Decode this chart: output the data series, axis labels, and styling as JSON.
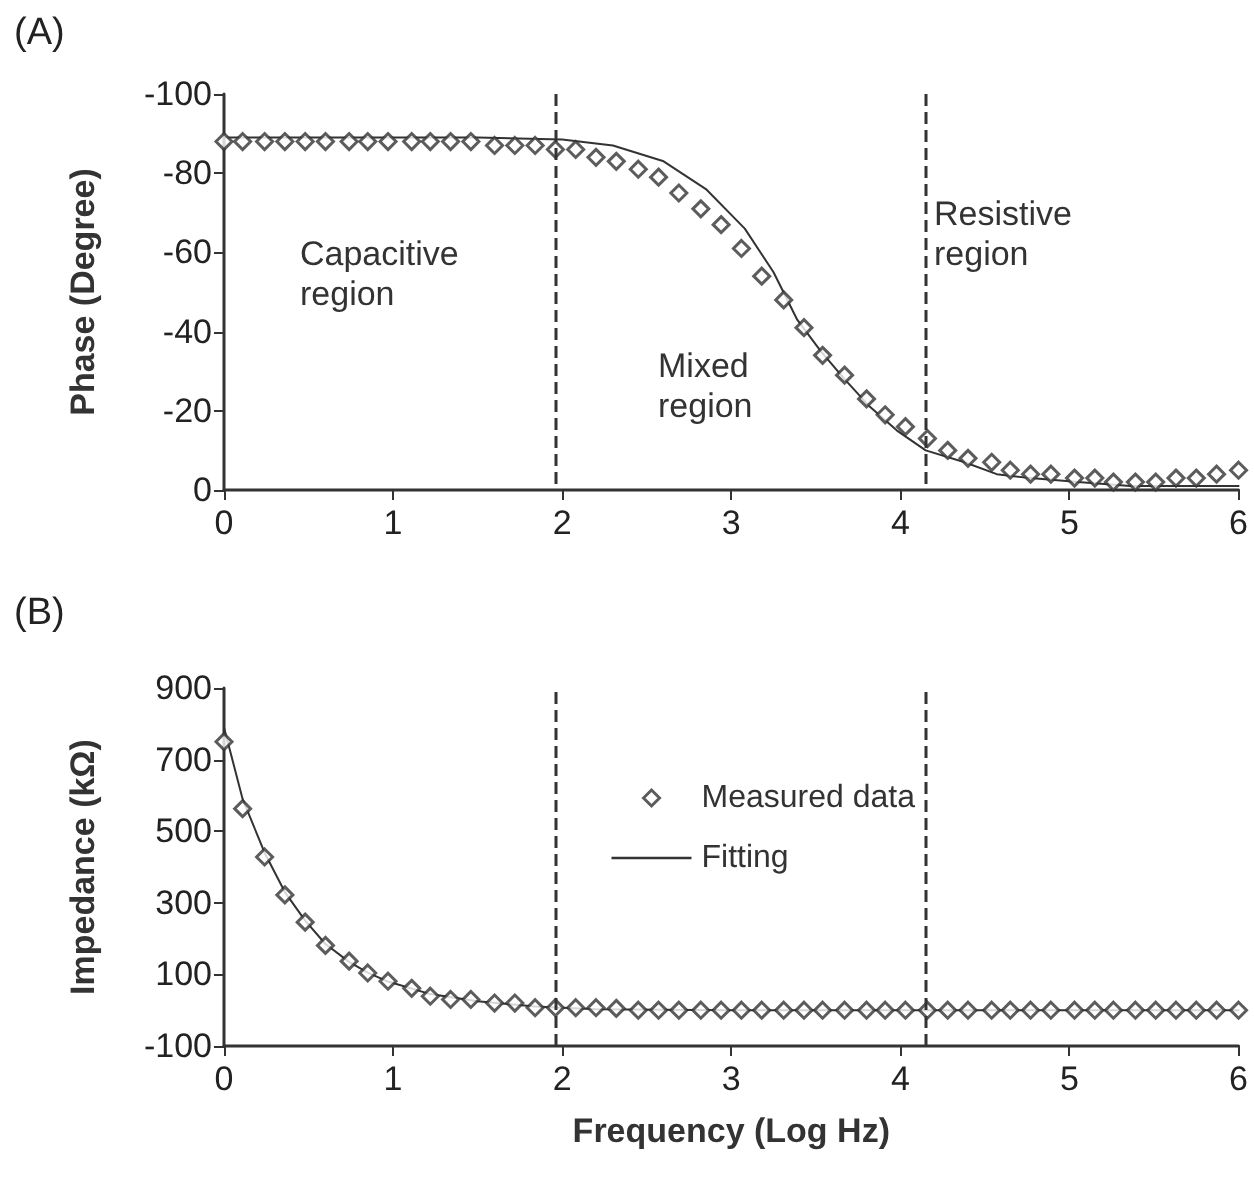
{
  "chart_data": [
    {
      "type": "scatter",
      "title": "(A)",
      "ylabel": "Phase (Degree)",
      "x": [
        0,
        0.11,
        0.24,
        0.36,
        0.48,
        0.6,
        0.74,
        0.85,
        0.97,
        1.11,
        1.22,
        1.34,
        1.46,
        1.6,
        1.72,
        1.84,
        1.96,
        2.08,
        2.2,
        2.32,
        2.45,
        2.57,
        2.69,
        2.82,
        2.94,
        3.06,
        3.18,
        3.31,
        3.43,
        3.54,
        3.67,
        3.8,
        3.91,
        4.03,
        4.16,
        4.28,
        4.4,
        4.54,
        4.65,
        4.77,
        4.89,
        5.03,
        5.15,
        5.26,
        5.39,
        5.51,
        5.63,
        5.75,
        5.87,
        6
      ],
      "series": [
        {
          "color": "#333333",
          "marker": "diamond",
          "values": [
            -88,
            -88,
            -88,
            -88,
            -88,
            -88,
            -88,
            -88,
            -88,
            -88,
            -88,
            -88,
            -88,
            -87,
            -87,
            -87,
            -86,
            -86,
            -84,
            -83,
            -81,
            -79,
            -75,
            -71,
            -67,
            -61,
            -54,
            -48,
            -41,
            -34,
            -29,
            -23,
            -19,
            -16,
            -13,
            -10,
            -8,
            -7,
            -5,
            -4,
            -4,
            -3,
            -3,
            -2,
            -2,
            -2,
            -3,
            -3,
            -4,
            -5
          ]
        },
        {
          "type": "line",
          "color": "#333333",
          "marker": "none",
          "line_style": "solid",
          "x": [
            0,
            1,
            1.5,
            2,
            2.3,
            2.6,
            2.85,
            3.08,
            3.25,
            3.39,
            3.53,
            3.67,
            3.82,
            3.98,
            4.15,
            4.38,
            4.57,
            4.77,
            5.05,
            5.36,
            6
          ],
          "values": [
            -89,
            -89,
            -89,
            -88.5,
            -87,
            -83,
            -76,
            -66,
            -55,
            -43,
            -35,
            -28,
            -21,
            -15,
            -10,
            -7,
            -4,
            -3,
            -2,
            -1,
            -1
          ]
        }
      ],
      "xlim": [
        0,
        6
      ],
      "xticks": [
        0,
        1,
        2,
        3,
        4,
        5,
        6
      ],
      "ylim": [
        0,
        -100
      ],
      "yticks": [
        0,
        -20,
        -40,
        -60,
        -80,
        -100
      ],
      "grid": false,
      "legend": false,
      "ref_lines": [
        {
          "axis": "x",
          "value": 1.96,
          "color": "#333333",
          "line_style": "dashed"
        },
        {
          "axis": "x",
          "value": 4.15,
          "color": "#333333",
          "line_style": "dashed"
        }
      ],
      "annotations": [
        "Capacitive region",
        "Mixed region",
        "Resistive region"
      ]
    },
    {
      "type": "scatter",
      "title": "(B)",
      "ylabel": "Impedance (kΩ)",
      "xlabel": "Frequency (Log Hz)",
      "x": [
        0,
        0.11,
        0.24,
        0.36,
        0.48,
        0.6,
        0.74,
        0.85,
        0.97,
        1.11,
        1.22,
        1.34,
        1.46,
        1.6,
        1.72,
        1.84,
        1.96,
        2.08,
        2.2,
        2.32,
        2.45,
        2.57,
        2.69,
        2.82,
        2.94,
        3.06,
        3.18,
        3.31,
        3.43,
        3.54,
        3.67,
        3.8,
        3.91,
        4.03,
        4.16,
        4.28,
        4.4,
        4.54,
        4.65,
        4.77,
        4.89,
        5.03,
        5.15,
        5.26,
        5.39,
        5.51,
        5.63,
        5.75,
        5.87,
        6
      ],
      "series": [
        {
          "name": "Measured data",
          "color": "#333333",
          "marker": "diamond",
          "values": [
            750,
            563,
            428,
            322,
            246,
            181,
            137,
            104,
            81,
            61,
            39,
            30,
            30,
            20,
            20,
            7,
            7,
            7,
            7,
            5,
            0,
            0,
            0,
            0,
            0,
            0,
            0,
            0,
            0,
            0,
            0,
            0,
            0,
            0,
            0,
            0,
            0,
            0,
            0,
            0,
            0,
            0,
            0,
            0,
            0,
            0,
            0,
            0,
            0,
            0
          ]
        },
        {
          "type": "line",
          "name": "Fitting",
          "color": "#333333",
          "marker": "none",
          "line_style": "solid",
          "x": [
            0,
            0.11,
            0.24,
            0.36,
            0.48,
            0.6,
            0.74,
            0.85,
            0.97,
            1.22,
            1.5,
            1.84,
            2.2,
            3,
            6
          ],
          "values": [
            790,
            590,
            440,
            330,
            250,
            185,
            135,
            105,
            80,
            45,
            25,
            10,
            3,
            0,
            0
          ]
        }
      ],
      "xlim": [
        0,
        6
      ],
      "xticks": [
        0,
        1,
        2,
        3,
        4,
        5,
        6
      ],
      "ylim": [
        -100,
        900
      ],
      "yticks": [
        -100,
        100,
        300,
        500,
        700,
        900
      ],
      "grid": false,
      "legend": "top",
      "ref_lines": [
        {
          "axis": "x",
          "value": 1.96,
          "color": "#333333",
          "line_style": "dashed"
        },
        {
          "axis": "x",
          "value": 4.15,
          "color": "#333333",
          "line_style": "dashed"
        }
      ]
    }
  ]
}
